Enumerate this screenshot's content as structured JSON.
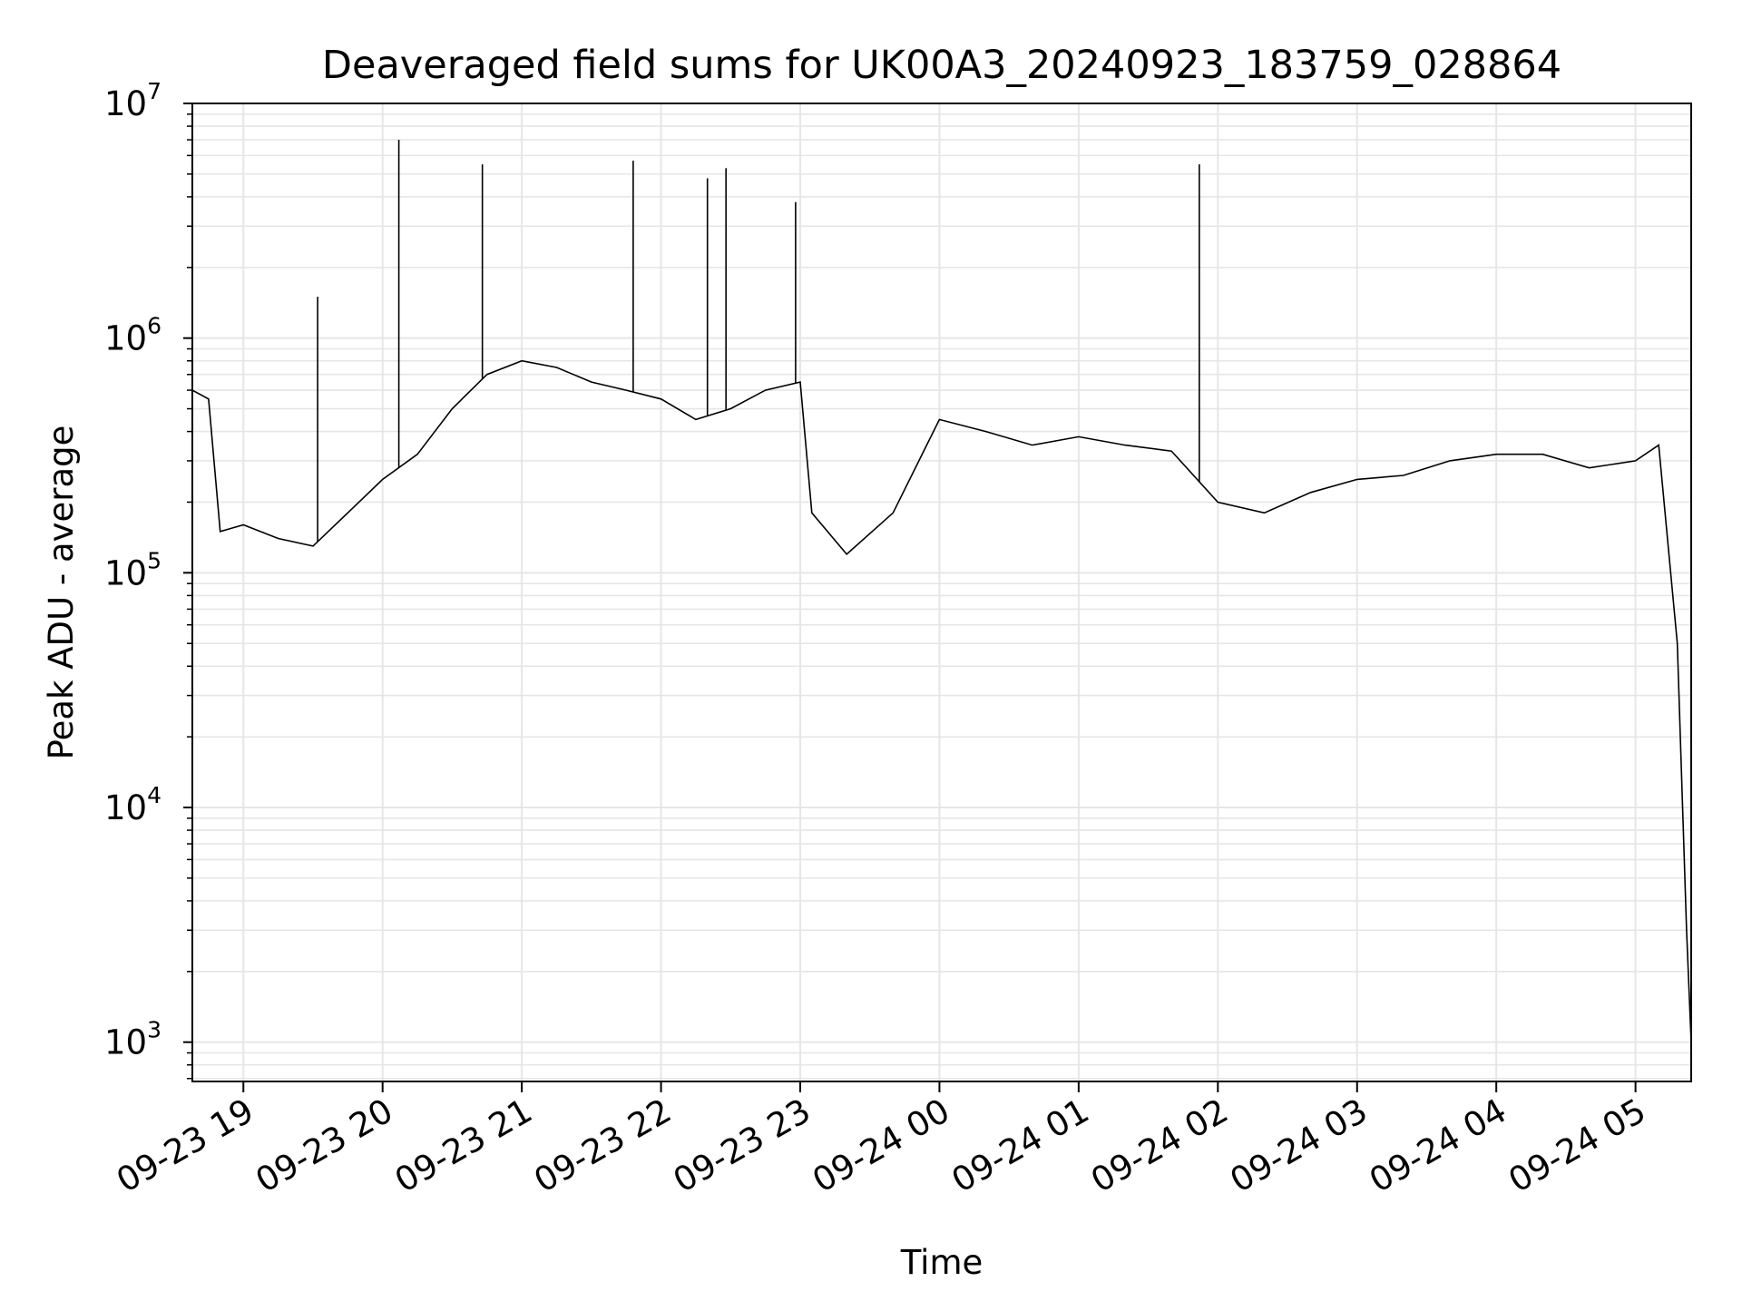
{
  "chart_data": {
    "type": "line",
    "title": "Deaveraged field sums for UK00A3_20240923_183759_028864",
    "xlabel": "Time",
    "ylabel": "Peak ADU - average",
    "yscale": "log",
    "ylim": [
      680,
      10000000
    ],
    "xlim": [
      "2024-09-23 18:38",
      "2024-09-24 05:24"
    ],
    "grid": true,
    "line_color": "#000000",
    "grid_color": "#e6e6e6",
    "x_ticks": [
      {
        "label": "09-23 19",
        "time": "2024-09-23 19:00"
      },
      {
        "label": "09-23 20",
        "time": "2024-09-23 20:00"
      },
      {
        "label": "09-23 21",
        "time": "2024-09-23 21:00"
      },
      {
        "label": "09-23 22",
        "time": "2024-09-23 22:00"
      },
      {
        "label": "09-23 23",
        "time": "2024-09-23 23:00"
      },
      {
        "label": "09-24 00",
        "time": "2024-09-24 00:00"
      },
      {
        "label": "09-24 01",
        "time": "2024-09-24 01:00"
      },
      {
        "label": "09-24 02",
        "time": "2024-09-24 02:00"
      },
      {
        "label": "09-24 03",
        "time": "2024-09-24 03:00"
      },
      {
        "label": "09-24 04",
        "time": "2024-09-24 04:00"
      },
      {
        "label": "09-24 05",
        "time": "2024-09-24 05:00"
      }
    ],
    "y_ticks": [
      {
        "base": "10",
        "exp": "3",
        "value": 1000
      },
      {
        "base": "10",
        "exp": "4",
        "value": 10000
      },
      {
        "base": "10",
        "exp": "5",
        "value": 100000
      },
      {
        "base": "10",
        "exp": "6",
        "value": 1000000
      },
      {
        "base": "10",
        "exp": "7",
        "value": 10000000
      }
    ],
    "series": [
      {
        "x": [
          "2024-09-23 18:38",
          "2024-09-23 18:45",
          "2024-09-23 18:50",
          "2024-09-23 19:00",
          "2024-09-23 19:15",
          "2024-09-23 19:30",
          "2024-09-23 19:45",
          "2024-09-23 20:00",
          "2024-09-23 20:15",
          "2024-09-23 20:30",
          "2024-09-23 20:45",
          "2024-09-23 21:00",
          "2024-09-23 21:15",
          "2024-09-23 21:30",
          "2024-09-23 21:45",
          "2024-09-23 22:00",
          "2024-09-23 22:15",
          "2024-09-23 22:30",
          "2024-09-23 22:45",
          "2024-09-23 23:00",
          "2024-09-23 23:05",
          "2024-09-23 23:20",
          "2024-09-23 23:40",
          "2024-09-24 00:00",
          "2024-09-24 00:20",
          "2024-09-24 00:40",
          "2024-09-24 01:00",
          "2024-09-24 01:20",
          "2024-09-24 01:40",
          "2024-09-24 02:00",
          "2024-09-24 02:20",
          "2024-09-24 02:40",
          "2024-09-24 03:00",
          "2024-09-24 03:20",
          "2024-09-24 03:40",
          "2024-09-24 04:00",
          "2024-09-24 04:20",
          "2024-09-24 04:40",
          "2024-09-24 05:00",
          "2024-09-24 05:10",
          "2024-09-24 05:18",
          "2024-09-24 05:22",
          "2024-09-24 05:24"
        ],
        "y": [
          600000,
          550000,
          150000,
          160000,
          140000,
          130000,
          180000,
          250000,
          320000,
          500000,
          700000,
          800000,
          750000,
          650000,
          600000,
          550000,
          450000,
          500000,
          600000,
          650000,
          180000,
          120000,
          180000,
          450000,
          400000,
          350000,
          380000,
          350000,
          330000,
          200000,
          180000,
          220000,
          250000,
          260000,
          300000,
          320000,
          320000,
          280000,
          300000,
          350000,
          50000,
          3000,
          1000
        ],
        "spikes": [
          {
            "x": "2024-09-23 20:07",
            "y": 7000000
          },
          {
            "x": "2024-09-23 20:43",
            "y": 5500000
          },
          {
            "x": "2024-09-23 21:48",
            "y": 5700000
          },
          {
            "x": "2024-09-23 22:20",
            "y": 4800000
          },
          {
            "x": "2024-09-23 22:28",
            "y": 5300000
          },
          {
            "x": "2024-09-24 01:52",
            "y": 5500000
          },
          {
            "x": "2024-09-23 19:32",
            "y": 1500000
          },
          {
            "x": "2024-09-23 22:58",
            "y": 3800000
          }
        ]
      }
    ]
  }
}
